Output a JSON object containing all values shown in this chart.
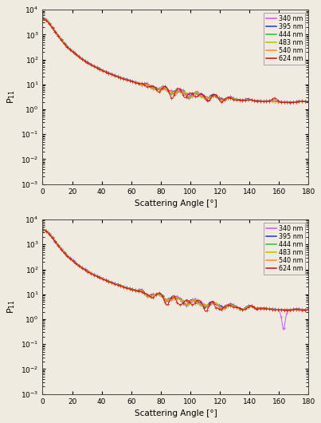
{
  "wavelengths": [
    "340 nm",
    "395 nm",
    "444 nm",
    "483 nm",
    "540 nm",
    "624 nm"
  ],
  "colors": [
    "#cc55ff",
    "#2233cc",
    "#33bb33",
    "#bbbb00",
    "#ff8833",
    "#cc1111"
  ],
  "ylabel": "P$_{11}$",
  "xlabel": "Scattering Angle [°]",
  "ylim": [
    0.001,
    10000.0
  ],
  "xlim": [
    0,
    180
  ],
  "xticks": [
    0,
    20,
    40,
    60,
    80,
    100,
    120,
    140,
    160,
    180
  ],
  "figsize": [
    4.03,
    5.3
  ],
  "dpi": 100,
  "bg_color": "#f0ebe0"
}
